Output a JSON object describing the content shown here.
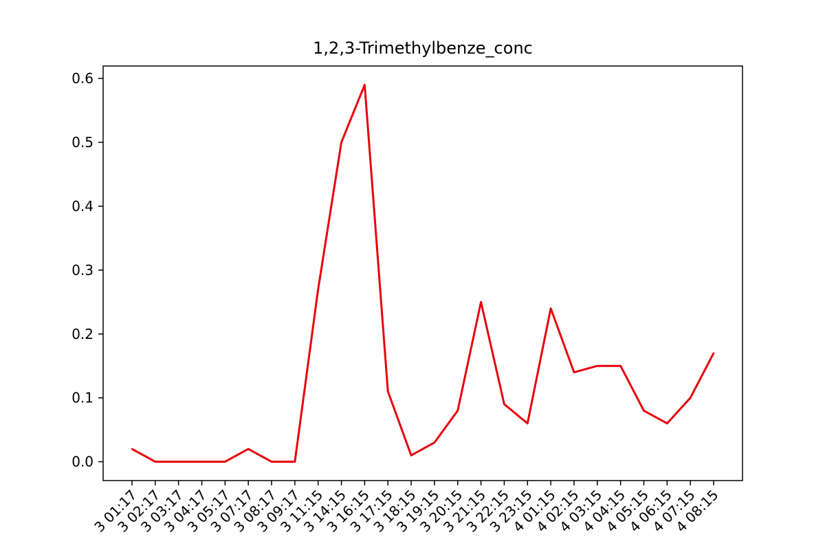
{
  "chart_data": {
    "type": "line",
    "title": "1,2,3-Trimethylbenze_conc",
    "xlabel": "",
    "ylabel": "",
    "ylim": [
      -0.0295,
      0.6195
    ],
    "y_ticks": [
      "0.0",
      "0.1",
      "0.2",
      "0.3",
      "0.4",
      "0.5",
      "0.6"
    ],
    "x_tick_labels": [
      "3 01:17",
      "3 02:17",
      "3 03:17",
      "3 04:17",
      "3 05:17",
      "3 07:17",
      "3 08:17",
      "3 09:17",
      "3 11:15",
      "3 14:15",
      "3 16:15",
      "3 17:15",
      "3 18:15",
      "3 19:15",
      "3 20:15",
      "3 21:15",
      "3 22:15",
      "3 23:15",
      "4 01:15",
      "4 02:15",
      "4 03:15",
      "4 04:15",
      "4 05:15",
      "4 06:15",
      "4 07:15",
      "4 08:15"
    ],
    "series": [
      {
        "color": "#e8000b",
        "values": [
          0.02,
          0.0,
          0.0,
          0.0,
          0.0,
          0.02,
          0.0,
          0.0,
          0.27,
          0.5,
          0.59,
          0.11,
          0.01,
          0.03,
          0.08,
          0.25,
          0.09,
          0.06,
          0.24,
          0.14,
          0.15,
          0.15,
          0.08,
          0.06,
          0.1,
          0.17
        ]
      }
    ],
    "grid": false,
    "legend": "none"
  }
}
